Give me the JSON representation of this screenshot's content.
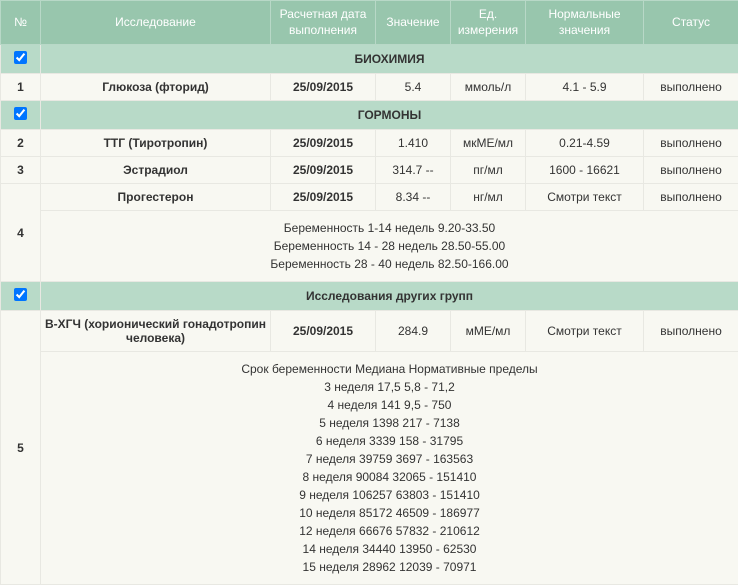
{
  "columns": {
    "num": "№",
    "test": "Исследование",
    "date": "Расчетная дата выполнения",
    "value": "Значение",
    "unit": "Ед. измерения",
    "range": "Нормальные значения",
    "status": "Статус"
  },
  "sections": {
    "biochem": "БИОХИМИЯ",
    "hormones": "ГОРМОНЫ",
    "other": "Исследования других групп"
  },
  "rows": {
    "r1": {
      "num": "1",
      "test": "Глюкоза (фторид)",
      "date": "25/09/2015",
      "value": "5.4",
      "unit": "ммоль/л",
      "range": "4.1 - 5.9",
      "status": "выполнено"
    },
    "r2": {
      "num": "2",
      "test": "ТТГ (Тиротропин)",
      "date": "25/09/2015",
      "value": "1.410",
      "unit": "мкМЕ/мл",
      "range": "0.21-4.59",
      "status": "выполнено"
    },
    "r3": {
      "num": "3",
      "test": "Эстрадиол",
      "date": "25/09/2015",
      "value": "314.7 --",
      "unit": "пг/мл",
      "range": "1600 - 16621",
      "status": "выполнено"
    },
    "r4": {
      "num": "4",
      "test": "Прогестерон",
      "date": "25/09/2015",
      "value": "8.34 --",
      "unit": "нг/мл",
      "range": "Смотри текст",
      "status": "выполнено"
    },
    "r5": {
      "num": "5",
      "test": "В-ХГЧ (хорионический гонадотропин человека)",
      "date": "25/09/2015",
      "value": "284.9",
      "unit": "мМЕ/мл",
      "range": "Смотри текст",
      "status": "выполнено"
    }
  },
  "notes": {
    "r4": {
      "l1": "Беременность 1-14 недель 9.20-33.50",
      "l2": "Беременность 14 - 28 недель 28.50-55.00",
      "l3": "Беременность 28 - 40 недель 82.50-166.00"
    },
    "r5": {
      "l0": "Срок беременности Медиана Нормативные пределы",
      "l1": "3 неделя 17,5 5,8 - 71,2",
      "l2": "4 неделя 141 9,5 - 750",
      "l3": "5 неделя 1398 217 - 7138",
      "l4": "6 неделя 3339 158 - 31795",
      "l5": "7 неделя 39759 3697 - 163563",
      "l6": "8 неделя 90084 32065 - 151410",
      "l7": "9 неделя 106257 63803 - 151410",
      "l8": "10 неделя 85172 46509 - 186977",
      "l9": "12 неделя 66676 57832 - 210612",
      "l10": "14 неделя 34440 13950 - 62530",
      "l11": "15 неделя 28962 12039 - 70971"
    }
  }
}
